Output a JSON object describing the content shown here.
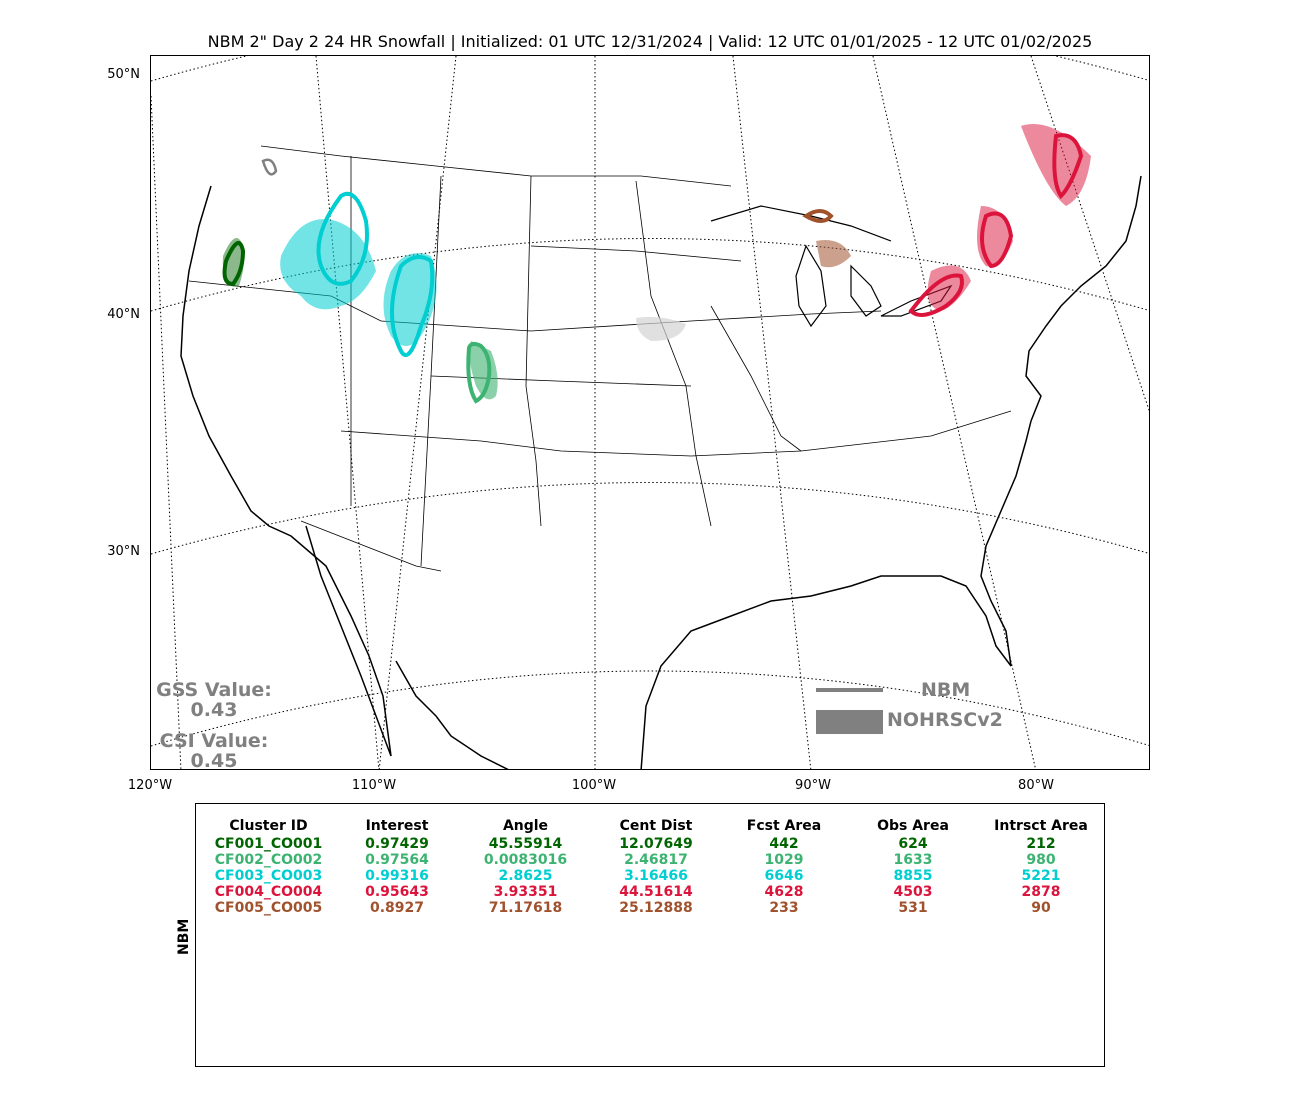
{
  "title": "NBM 2\" Day 2 24 HR Snowfall | Initialized: 01 UTC 12/31/2024 | Valid: 12 UTC 01/01/2025 - 12 UTC 01/02/2025",
  "map": {
    "lat_labels": [
      "50°N",
      "40°N",
      "30°N"
    ],
    "lon_labels": [
      "120°W",
      "110°W",
      "100°W",
      "90°W",
      "80°W"
    ]
  },
  "scores": {
    "gss_label": "GSS Value:",
    "gss_value": "0.43",
    "csi_label": "CSI Value:",
    "csi_value": "0.45"
  },
  "legend": {
    "line_label": "NBM",
    "fill_label": "NOHRSCv2",
    "color": "#808080"
  },
  "table": {
    "side_label": "NBM",
    "headers": [
      "Cluster ID",
      "Interest",
      "Angle",
      "Cent Dist",
      "Fcst Area",
      "Obs Area",
      "Intrsct Area"
    ],
    "rows": [
      {
        "color": "#006400",
        "cells": [
          "CF001_CO001",
          "0.97429",
          "45.55914",
          "12.07649",
          "442",
          "624",
          "212"
        ]
      },
      {
        "color": "#3CB371",
        "cells": [
          "CF002_CO002",
          "0.97564",
          "0.0083016",
          "2.46817",
          "1029",
          "1633",
          "980"
        ]
      },
      {
        "color": "#00CED1",
        "cells": [
          "CF003_CO003",
          "0.99316",
          "2.8625",
          "3.16466",
          "6646",
          "8855",
          "5221"
        ]
      },
      {
        "color": "#DC143C",
        "cells": [
          "CF004_CO004",
          "0.95643",
          "3.93351",
          "44.51614",
          "4628",
          "4503",
          "2878"
        ]
      },
      {
        "color": "#A0522D",
        "cells": [
          "CF005_CO005",
          "0.8927",
          "71.17618",
          "25.12888",
          "233",
          "531",
          "90"
        ]
      }
    ]
  }
}
